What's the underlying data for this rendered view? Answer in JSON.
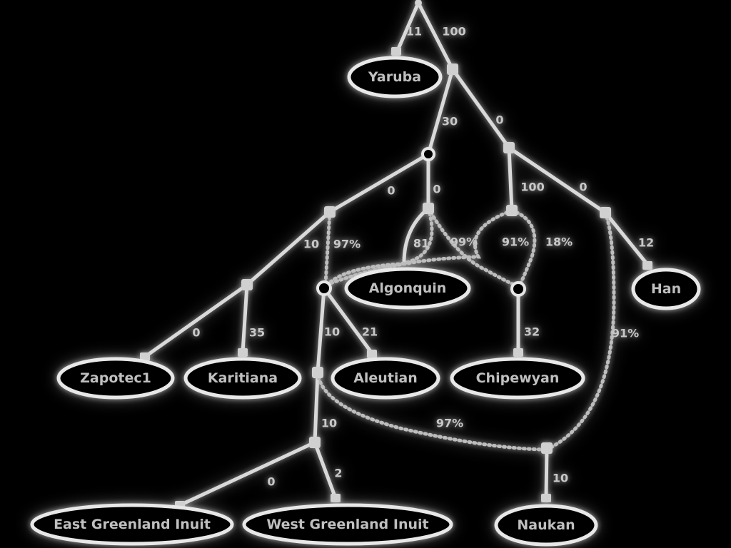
{
  "diagram": {
    "leaves": {
      "yaruba": "Yaruba",
      "algonquin": "Algonquin",
      "han": "Han",
      "zapotec": "Zapotec1",
      "karitiana": "Karitiana",
      "aleutian": "Aleutian",
      "chipewyan": "Chipewyan",
      "east_greenland": "East Greenland Inuit",
      "west_greenland": "West Greenland Inuit",
      "naukan": "Naukan"
    },
    "edge_labels": {
      "root_yaruba": "11",
      "root_a": "100",
      "a_b": "30",
      "a_c": "0",
      "b_d": "0",
      "b_e": "0",
      "e_algonquin": "81",
      "c_f": "100",
      "c_g": "0",
      "g_han": "12",
      "d_h": "10",
      "mix_d": "97%",
      "mix_e1": "99%",
      "mix_f1": "91%",
      "mix_f2": "18%",
      "h_zapotec": "0",
      "h_karitiana": "35",
      "i_k": "10",
      "i_aleutian": "21",
      "j_chipewyan": "32",
      "g_mix": "91%",
      "k_l": "10",
      "k_mix": "97%",
      "l_east": "0",
      "l_west": "2",
      "m_naukan": "10"
    }
  },
  "colors": {
    "background": "#000000",
    "line": "#d9d9d9",
    "text": "#bfbfbf"
  }
}
